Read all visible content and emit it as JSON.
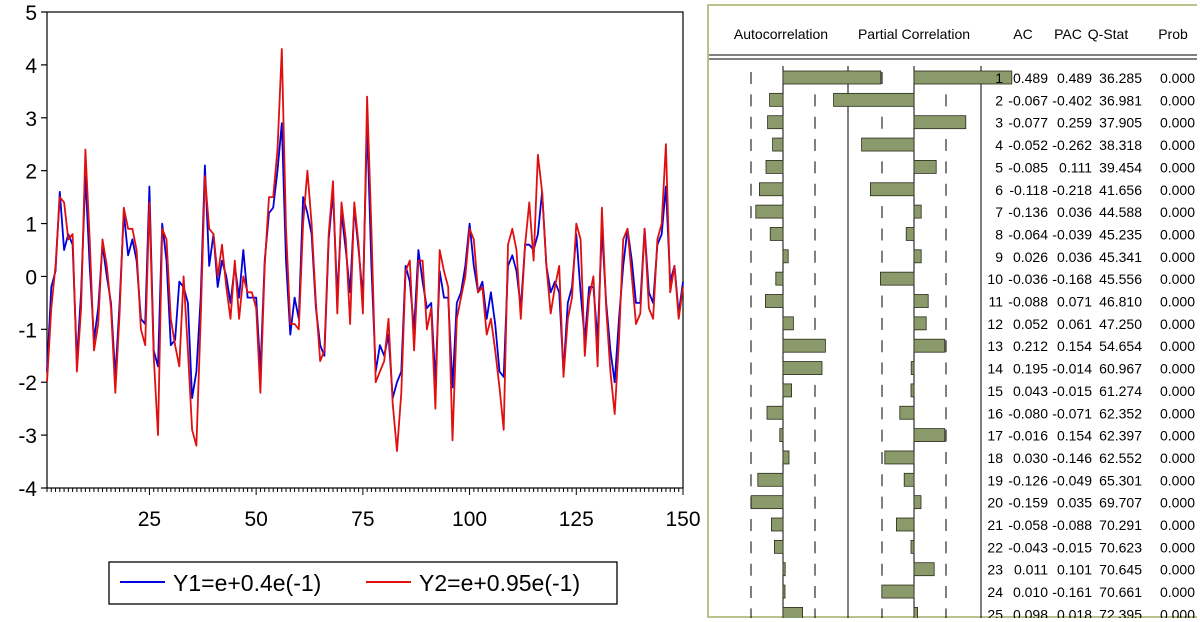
{
  "colors": {
    "y1": "#0000dd",
    "y2": "#e01010",
    "bar": "#8a9a6a",
    "bar_stroke": "#2a2a1a",
    "panel_border": "#b8c48d"
  },
  "chart_data": [
    {
      "type": "line",
      "xlim": [
        1,
        150
      ],
      "ylim": [
        -4,
        5
      ],
      "x_ticks": [
        25,
        50,
        75,
        100,
        125,
        150
      ],
      "y_ticks": [
        5,
        4,
        3,
        2,
        1,
        0,
        -1,
        -2,
        -3,
        -4
      ],
      "grid": false,
      "legend_position": "bottom-center",
      "series": [
        {
          "name": "Y1=e+0.4e(-1)",
          "color": "#0000dd",
          "x": [
            1,
            2,
            3,
            4,
            5,
            6,
            7,
            8,
            9,
            10,
            11,
            12,
            13,
            14,
            15,
            16,
            17,
            18,
            19,
            20,
            21,
            22,
            23,
            24,
            25,
            26,
            27,
            28,
            29,
            30,
            31,
            32,
            33,
            34,
            35,
            36,
            37,
            38,
            39,
            40,
            41,
            42,
            43,
            44,
            45,
            46,
            47,
            48,
            49,
            50,
            51,
            52,
            53,
            54,
            55,
            56,
            57,
            58,
            59,
            60,
            61,
            62,
            63,
            64,
            65,
            66,
            67,
            68,
            69,
            70,
            71,
            72,
            73,
            74,
            75,
            76,
            77,
            78,
            79,
            80,
            81,
            82,
            83,
            84,
            85,
            86,
            87,
            88,
            89,
            90,
            91,
            92,
            93,
            94,
            95,
            96,
            97,
            98,
            99,
            100,
            101,
            102,
            103,
            104,
            105,
            106,
            107,
            108,
            109,
            110,
            111,
            112,
            113,
            114,
            115,
            116,
            117,
            118,
            119,
            120,
            121,
            122,
            123,
            124,
            125,
            126,
            127,
            128,
            129,
            130,
            131,
            132,
            133,
            134,
            135,
            136,
            137,
            138,
            139,
            140,
            141,
            142,
            143,
            144,
            145,
            146,
            147,
            148,
            149,
            150
          ],
          "values": [
            -1.8,
            -0.2,
            0.1,
            1.6,
            0.5,
            0.8,
            0.6,
            -1.6,
            -0.3,
            1.9,
            0.2,
            -1.2,
            -0.6,
            0.6,
            0.0,
            -0.5,
            -1.9,
            -0.5,
            1.2,
            0.4,
            0.7,
            0.3,
            -0.8,
            -0.9,
            1.7,
            -1.4,
            -1.7,
            1.0,
            0.3,
            -1.3,
            -1.2,
            -0.1,
            -0.2,
            -0.5,
            -2.3,
            -1.8,
            -0.4,
            2.1,
            0.2,
            0.8,
            -0.2,
            0.3,
            0.0,
            -0.5,
            0.2,
            -0.4,
            0.5,
            -0.4,
            -0.4,
            -0.4,
            -1.8,
            0.3,
            1.2,
            1.3,
            2.0,
            2.9,
            0.3,
            -1.1,
            -0.4,
            -0.8,
            1.5,
            1.2,
            0.8,
            -0.6,
            -1.3,
            -1.5,
            0.7,
            1.6,
            -0.4,
            1.2,
            0.5,
            -0.3,
            1.3,
            0.5,
            -0.4,
            2.9,
            0.2,
            -1.8,
            -1.3,
            -1.5,
            -1.1,
            -2.3,
            -2.0,
            -1.8,
            0.2,
            -0.1,
            -1.0,
            0.5,
            -0.1,
            -0.6,
            -0.5,
            -2.0,
            0.1,
            -0.4,
            -0.4,
            -2.1,
            -0.5,
            -0.3,
            0.2,
            1.0,
            0.2,
            -0.3,
            -0.1,
            -0.8,
            -0.3,
            -0.9,
            -1.8,
            -1.9,
            0.2,
            0.4,
            0.1,
            -0.6,
            0.6,
            0.6,
            0.5,
            0.8,
            1.6,
            0.2,
            -0.3,
            -0.1,
            -0.3,
            -1.8,
            -0.5,
            -0.2,
            0.8,
            -0.3,
            -1.2,
            -0.2,
            -0.2,
            -1.2,
            0.9,
            -0.5,
            -1.4,
            -2.0,
            -0.8,
            0.2,
            0.9,
            0.3,
            -0.5,
            -0.5,
            0.9,
            -0.3,
            -0.5,
            0.6,
            0.8,
            1.7,
            -0.1,
            0.2,
            -0.7,
            -0.1
          ]
        },
        {
          "name": "Y2=e+0.95e(-1)",
          "color": "#e01010",
          "x": [
            1,
            2,
            3,
            4,
            5,
            6,
            7,
            8,
            9,
            10,
            11,
            12,
            13,
            14,
            15,
            16,
            17,
            18,
            19,
            20,
            21,
            22,
            23,
            24,
            25,
            26,
            27,
            28,
            29,
            30,
            31,
            32,
            33,
            34,
            35,
            36,
            37,
            38,
            39,
            40,
            41,
            42,
            43,
            44,
            45,
            46,
            47,
            48,
            49,
            50,
            51,
            52,
            53,
            54,
            55,
            56,
            57,
            58,
            59,
            60,
            61,
            62,
            63,
            64,
            65,
            66,
            67,
            68,
            69,
            70,
            71,
            72,
            73,
            74,
            75,
            76,
            77,
            78,
            79,
            80,
            81,
            82,
            83,
            84,
            85,
            86,
            87,
            88,
            89,
            90,
            91,
            92,
            93,
            94,
            95,
            96,
            97,
            98,
            99,
            100,
            101,
            102,
            103,
            104,
            105,
            106,
            107,
            108,
            109,
            110,
            111,
            112,
            113,
            114,
            115,
            116,
            117,
            118,
            119,
            120,
            121,
            122,
            123,
            124,
            125,
            126,
            127,
            128,
            129,
            130,
            131,
            132,
            133,
            134,
            135,
            136,
            137,
            138,
            139,
            140,
            141,
            142,
            143,
            144,
            145,
            146,
            147,
            148,
            149,
            150
          ],
          "values": [
            -2.0,
            -0.6,
            0.2,
            1.5,
            1.4,
            0.7,
            0.8,
            -1.8,
            -0.6,
            2.4,
            0.7,
            -1.4,
            -0.9,
            0.7,
            0.2,
            -0.6,
            -2.2,
            -0.7,
            1.3,
            0.9,
            0.9,
            0.5,
            -1.0,
            -1.3,
            1.4,
            -1.5,
            -3.0,
            0.9,
            0.7,
            -0.8,
            -1.3,
            -1.7,
            0.0,
            -1.4,
            -2.9,
            -3.2,
            -0.8,
            1.9,
            0.9,
            0.8,
            0.0,
            0.6,
            -0.2,
            -0.8,
            0.3,
            -0.8,
            0.0,
            -0.3,
            -0.3,
            -0.6,
            -2.2,
            0.2,
            1.5,
            1.5,
            2.4,
            4.3,
            0.9,
            -0.9,
            -0.9,
            -1.0,
            1.0,
            2.0,
            1.0,
            -0.5,
            -1.6,
            -1.4,
            0.8,
            1.8,
            -0.7,
            1.4,
            0.7,
            -0.9,
            1.4,
            0.6,
            -0.7,
            3.4,
            0.9,
            -2.0,
            -1.8,
            -1.6,
            -0.8,
            -2.4,
            -3.3,
            -2.2,
            0.1,
            0.3,
            -1.4,
            0.3,
            0.3,
            -1.0,
            -0.6,
            -2.5,
            0.5,
            0.1,
            -0.2,
            -3.1,
            -0.8,
            -0.4,
            0.0,
            0.9,
            0.7,
            -0.3,
            -0.2,
            -1.1,
            -0.8,
            -1.4,
            -2.1,
            -2.9,
            0.6,
            0.9,
            0.5,
            -0.8,
            0.6,
            1.4,
            0.3,
            2.3,
            1.6,
            0.2,
            -0.7,
            -0.2,
            0.2,
            -1.9,
            -0.8,
            -0.4,
            1.0,
            0.7,
            -1.5,
            -0.4,
            0.0,
            -1.7,
            1.3,
            -0.6,
            -1.8,
            -2.6,
            -1.2,
            0.7,
            0.9,
            0.0,
            -0.9,
            -0.7,
            0.9,
            -0.6,
            -0.8,
            0.7,
            1.0,
            2.5,
            -0.3,
            0.2,
            -0.8,
            -0.2
          ]
        }
      ]
    },
    {
      "type": "table",
      "headers": [
        "Autocorrelation",
        "Partial Correlation",
        "",
        "AC",
        "PAC",
        "Q-Stat",
        "Prob"
      ],
      "bounds": 0.16,
      "rows": [
        {
          "lag": "1",
          "ac": "0.489",
          "pac": "0.489",
          "q": "36.285",
          "prob": "0.000"
        },
        {
          "lag": "2",
          "ac": "-0.067",
          "pac": "-0.402",
          "q": "36.981",
          "prob": "0.000"
        },
        {
          "lag": "3",
          "ac": "-0.077",
          "pac": "0.259",
          "q": "37.905",
          "prob": "0.000"
        },
        {
          "lag": "4",
          "ac": "-0.052",
          "pac": "-0.262",
          "q": "38.318",
          "prob": "0.000"
        },
        {
          "lag": "5",
          "ac": "-0.085",
          "pac": "0.111",
          "q": "39.454",
          "prob": "0.000"
        },
        {
          "lag": "6",
          "ac": "-0.118",
          "pac": "-0.218",
          "q": "41.656",
          "prob": "0.000"
        },
        {
          "lag": "7",
          "ac": "-0.136",
          "pac": "0.036",
          "q": "44.588",
          "prob": "0.000"
        },
        {
          "lag": "8",
          "ac": "-0.064",
          "pac": "-0.039",
          "q": "45.235",
          "prob": "0.000"
        },
        {
          "lag": "9",
          "ac": "0.026",
          "pac": "0.036",
          "q": "45.341",
          "prob": "0.000"
        },
        {
          "lag": "10",
          "ac": "-0.036",
          "pac": "-0.168",
          "q": "45.556",
          "prob": "0.000"
        },
        {
          "lag": "11",
          "ac": "-0.088",
          "pac": "0.071",
          "q": "46.810",
          "prob": "0.000"
        },
        {
          "lag": "12",
          "ac": "0.052",
          "pac": "0.061",
          "q": "47.250",
          "prob": "0.000"
        },
        {
          "lag": "13",
          "ac": "0.212",
          "pac": "0.154",
          "q": "54.654",
          "prob": "0.000"
        },
        {
          "lag": "14",
          "ac": "0.195",
          "pac": "-0.014",
          "q": "60.967",
          "prob": "0.000"
        },
        {
          "lag": "15",
          "ac": "0.043",
          "pac": "-0.015",
          "q": "61.274",
          "prob": "0.000"
        },
        {
          "lag": "16",
          "ac": "-0.080",
          "pac": "-0.071",
          "q": "62.352",
          "prob": "0.000"
        },
        {
          "lag": "17",
          "ac": "-0.016",
          "pac": "0.154",
          "q": "62.397",
          "prob": "0.000"
        },
        {
          "lag": "18",
          "ac": "0.030",
          "pac": "-0.146",
          "q": "62.552",
          "prob": "0.000"
        },
        {
          "lag": "19",
          "ac": "-0.126",
          "pac": "-0.049",
          "q": "65.301",
          "prob": "0.000"
        },
        {
          "lag": "20",
          "ac": "-0.159",
          "pac": "0.035",
          "q": "69.707",
          "prob": "0.000"
        },
        {
          "lag": "21",
          "ac": "-0.058",
          "pac": "-0.088",
          "q": "70.291",
          "prob": "0.000"
        },
        {
          "lag": "22",
          "ac": "-0.043",
          "pac": "-0.015",
          "q": "70.623",
          "prob": "0.000"
        },
        {
          "lag": "23",
          "ac": "0.011",
          "pac": "0.101",
          "q": "70.645",
          "prob": "0.000"
        },
        {
          "lag": "24",
          "ac": "0.010",
          "pac": "-0.161",
          "q": "70.661",
          "prob": "0.000"
        },
        {
          "lag": "25",
          "ac": "0.098",
          "pac": "0.018",
          "q": "72.395",
          "prob": "0.000"
        }
      ]
    }
  ]
}
